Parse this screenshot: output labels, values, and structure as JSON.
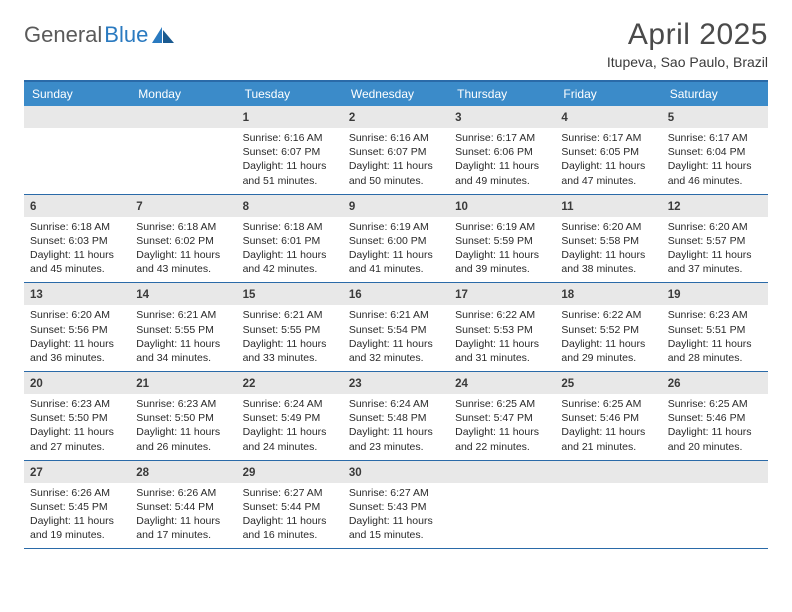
{
  "brand": {
    "part1": "General",
    "part2": "Blue"
  },
  "title": "April 2025",
  "location": "Itupeva, Sao Paulo, Brazil",
  "colors": {
    "header_bg": "#3b8bc9",
    "border": "#2a6aa8",
    "daynum_bg": "#e8e8e8",
    "text": "#2a2a2a",
    "title_color": "#4a4a4a"
  },
  "layout": {
    "rows": 5,
    "cols": 7,
    "cell_min_height": 86,
    "body_fontsize": 10.5,
    "daynum_fontsize": 11.5,
    "title_fontsize": 30
  },
  "weekdays": [
    "Sunday",
    "Monday",
    "Tuesday",
    "Wednesday",
    "Thursday",
    "Friday",
    "Saturday"
  ],
  "weeks": [
    [
      {
        "n": "",
        "sr": "",
        "ss": "",
        "d1": "",
        "d2": ""
      },
      {
        "n": "",
        "sr": "",
        "ss": "",
        "d1": "",
        "d2": ""
      },
      {
        "n": "1",
        "sr": "Sunrise: 6:16 AM",
        "ss": "Sunset: 6:07 PM",
        "d1": "Daylight: 11 hours",
        "d2": "and 51 minutes."
      },
      {
        "n": "2",
        "sr": "Sunrise: 6:16 AM",
        "ss": "Sunset: 6:07 PM",
        "d1": "Daylight: 11 hours",
        "d2": "and 50 minutes."
      },
      {
        "n": "3",
        "sr": "Sunrise: 6:17 AM",
        "ss": "Sunset: 6:06 PM",
        "d1": "Daylight: 11 hours",
        "d2": "and 49 minutes."
      },
      {
        "n": "4",
        "sr": "Sunrise: 6:17 AM",
        "ss": "Sunset: 6:05 PM",
        "d1": "Daylight: 11 hours",
        "d2": "and 47 minutes."
      },
      {
        "n": "5",
        "sr": "Sunrise: 6:17 AM",
        "ss": "Sunset: 6:04 PM",
        "d1": "Daylight: 11 hours",
        "d2": "and 46 minutes."
      }
    ],
    [
      {
        "n": "6",
        "sr": "Sunrise: 6:18 AM",
        "ss": "Sunset: 6:03 PM",
        "d1": "Daylight: 11 hours",
        "d2": "and 45 minutes."
      },
      {
        "n": "7",
        "sr": "Sunrise: 6:18 AM",
        "ss": "Sunset: 6:02 PM",
        "d1": "Daylight: 11 hours",
        "d2": "and 43 minutes."
      },
      {
        "n": "8",
        "sr": "Sunrise: 6:18 AM",
        "ss": "Sunset: 6:01 PM",
        "d1": "Daylight: 11 hours",
        "d2": "and 42 minutes."
      },
      {
        "n": "9",
        "sr": "Sunrise: 6:19 AM",
        "ss": "Sunset: 6:00 PM",
        "d1": "Daylight: 11 hours",
        "d2": "and 41 minutes."
      },
      {
        "n": "10",
        "sr": "Sunrise: 6:19 AM",
        "ss": "Sunset: 5:59 PM",
        "d1": "Daylight: 11 hours",
        "d2": "and 39 minutes."
      },
      {
        "n": "11",
        "sr": "Sunrise: 6:20 AM",
        "ss": "Sunset: 5:58 PM",
        "d1": "Daylight: 11 hours",
        "d2": "and 38 minutes."
      },
      {
        "n": "12",
        "sr": "Sunrise: 6:20 AM",
        "ss": "Sunset: 5:57 PM",
        "d1": "Daylight: 11 hours",
        "d2": "and 37 minutes."
      }
    ],
    [
      {
        "n": "13",
        "sr": "Sunrise: 6:20 AM",
        "ss": "Sunset: 5:56 PM",
        "d1": "Daylight: 11 hours",
        "d2": "and 36 minutes."
      },
      {
        "n": "14",
        "sr": "Sunrise: 6:21 AM",
        "ss": "Sunset: 5:55 PM",
        "d1": "Daylight: 11 hours",
        "d2": "and 34 minutes."
      },
      {
        "n": "15",
        "sr": "Sunrise: 6:21 AM",
        "ss": "Sunset: 5:55 PM",
        "d1": "Daylight: 11 hours",
        "d2": "and 33 minutes."
      },
      {
        "n": "16",
        "sr": "Sunrise: 6:21 AM",
        "ss": "Sunset: 5:54 PM",
        "d1": "Daylight: 11 hours",
        "d2": "and 32 minutes."
      },
      {
        "n": "17",
        "sr": "Sunrise: 6:22 AM",
        "ss": "Sunset: 5:53 PM",
        "d1": "Daylight: 11 hours",
        "d2": "and 31 minutes."
      },
      {
        "n": "18",
        "sr": "Sunrise: 6:22 AM",
        "ss": "Sunset: 5:52 PM",
        "d1": "Daylight: 11 hours",
        "d2": "and 29 minutes."
      },
      {
        "n": "19",
        "sr": "Sunrise: 6:23 AM",
        "ss": "Sunset: 5:51 PM",
        "d1": "Daylight: 11 hours",
        "d2": "and 28 minutes."
      }
    ],
    [
      {
        "n": "20",
        "sr": "Sunrise: 6:23 AM",
        "ss": "Sunset: 5:50 PM",
        "d1": "Daylight: 11 hours",
        "d2": "and 27 minutes."
      },
      {
        "n": "21",
        "sr": "Sunrise: 6:23 AM",
        "ss": "Sunset: 5:50 PM",
        "d1": "Daylight: 11 hours",
        "d2": "and 26 minutes."
      },
      {
        "n": "22",
        "sr": "Sunrise: 6:24 AM",
        "ss": "Sunset: 5:49 PM",
        "d1": "Daylight: 11 hours",
        "d2": "and 24 minutes."
      },
      {
        "n": "23",
        "sr": "Sunrise: 6:24 AM",
        "ss": "Sunset: 5:48 PM",
        "d1": "Daylight: 11 hours",
        "d2": "and 23 minutes."
      },
      {
        "n": "24",
        "sr": "Sunrise: 6:25 AM",
        "ss": "Sunset: 5:47 PM",
        "d1": "Daylight: 11 hours",
        "d2": "and 22 minutes."
      },
      {
        "n": "25",
        "sr": "Sunrise: 6:25 AM",
        "ss": "Sunset: 5:46 PM",
        "d1": "Daylight: 11 hours",
        "d2": "and 21 minutes."
      },
      {
        "n": "26",
        "sr": "Sunrise: 6:25 AM",
        "ss": "Sunset: 5:46 PM",
        "d1": "Daylight: 11 hours",
        "d2": "and 20 minutes."
      }
    ],
    [
      {
        "n": "27",
        "sr": "Sunrise: 6:26 AM",
        "ss": "Sunset: 5:45 PM",
        "d1": "Daylight: 11 hours",
        "d2": "and 19 minutes."
      },
      {
        "n": "28",
        "sr": "Sunrise: 6:26 AM",
        "ss": "Sunset: 5:44 PM",
        "d1": "Daylight: 11 hours",
        "d2": "and 17 minutes."
      },
      {
        "n": "29",
        "sr": "Sunrise: 6:27 AM",
        "ss": "Sunset: 5:44 PM",
        "d1": "Daylight: 11 hours",
        "d2": "and 16 minutes."
      },
      {
        "n": "30",
        "sr": "Sunrise: 6:27 AM",
        "ss": "Sunset: 5:43 PM",
        "d1": "Daylight: 11 hours",
        "d2": "and 15 minutes."
      },
      {
        "n": "",
        "sr": "",
        "ss": "",
        "d1": "",
        "d2": ""
      },
      {
        "n": "",
        "sr": "",
        "ss": "",
        "d1": "",
        "d2": ""
      },
      {
        "n": "",
        "sr": "",
        "ss": "",
        "d1": "",
        "d2": ""
      }
    ]
  ]
}
